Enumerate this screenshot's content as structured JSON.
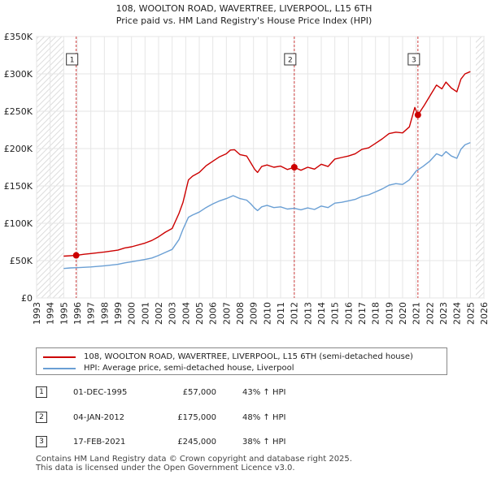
{
  "chart_data": {
    "type": "line",
    "title": "108, WOOLTON ROAD, WAVERTREE, LIVERPOOL, L15 6TH",
    "subtitle": "Price paid vs. HM Land Registry's House Price Index (HPI)",
    "xlim": [
      1993,
      2026
    ],
    "ylim": [
      0,
      350000
    ],
    "x_ticks": [
      "1993",
      "1994",
      "1995",
      "1996",
      "1997",
      "1998",
      "1999",
      "2000",
      "2001",
      "2002",
      "2003",
      "2004",
      "2005",
      "2006",
      "2007",
      "2008",
      "2009",
      "2010",
      "2011",
      "2012",
      "2013",
      "2014",
      "2015",
      "2016",
      "2017",
      "2018",
      "2019",
      "2020",
      "2021",
      "2022",
      "2023",
      "2024",
      "2025",
      "2026"
    ],
    "y_ticks": [
      {
        "value": 0,
        "label": "£0"
      },
      {
        "value": 50000,
        "label": "£50K"
      },
      {
        "value": 100000,
        "label": "£100K"
      },
      {
        "value": 150000,
        "label": "£150K"
      },
      {
        "value": 200000,
        "label": "£200K"
      },
      {
        "value": 250000,
        "label": "£250K"
      },
      {
        "value": 300000,
        "label": "£300K"
      },
      {
        "value": 350000,
        "label": "£350K"
      }
    ],
    "data_range": [
      1995.0,
      2025.4
    ],
    "grid": true,
    "series": [
      {
        "name": "108, WOOLTON ROAD, WAVERTREE, LIVERPOOL, L15 6TH (semi-detached house)",
        "color": "#cc0000",
        "points": [
          [
            1995.0,
            56000
          ],
          [
            1995.92,
            57000
          ],
          [
            1996.5,
            58500
          ],
          [
            1997,
            59500
          ],
          [
            1998,
            61500
          ],
          [
            1999,
            64000
          ],
          [
            1999.5,
            67000
          ],
          [
            2000,
            68500
          ],
          [
            2001,
            73500
          ],
          [
            2001.5,
            77000
          ],
          [
            2002,
            82000
          ],
          [
            2002.5,
            88000
          ],
          [
            2003,
            93000
          ],
          [
            2003.5,
            113000
          ],
          [
            2003.8,
            128000
          ],
          [
            2004.2,
            158000
          ],
          [
            2004.5,
            163000
          ],
          [
            2005,
            168000
          ],
          [
            2005.5,
            177000
          ],
          [
            2006,
            183000
          ],
          [
            2006.5,
            189000
          ],
          [
            2007,
            193000
          ],
          [
            2007.3,
            198000
          ],
          [
            2007.6,
            198500
          ],
          [
            2008,
            192000
          ],
          [
            2008.5,
            190000
          ],
          [
            2008.8,
            181000
          ],
          [
            2009.1,
            172000
          ],
          [
            2009.3,
            168000
          ],
          [
            2009.6,
            176000
          ],
          [
            2010,
            178000
          ],
          [
            2010.5,
            175000
          ],
          [
            2011,
            176500
          ],
          [
            2011.5,
            172000
          ],
          [
            2012.0,
            175000
          ],
          [
            2012.5,
            171000
          ],
          [
            2013,
            175000
          ],
          [
            2013.5,
            172500
          ],
          [
            2014,
            179000
          ],
          [
            2014.5,
            176000
          ],
          [
            2015,
            186000
          ],
          [
            2015.5,
            188000
          ],
          [
            2016,
            190000
          ],
          [
            2016.5,
            193000
          ],
          [
            2017,
            199000
          ],
          [
            2017.5,
            201000
          ],
          [
            2018,
            207000
          ],
          [
            2018.5,
            213000
          ],
          [
            2019,
            220000
          ],
          [
            2019.5,
            222000
          ],
          [
            2020,
            221000
          ],
          [
            2020.5,
            229000
          ],
          [
            2020.9,
            255000
          ],
          [
            2021.13,
            245000
          ],
          [
            2021.6,
            258000
          ],
          [
            2022,
            270000
          ],
          [
            2022.5,
            285000
          ],
          [
            2022.9,
            280000
          ],
          [
            2023.2,
            289000
          ],
          [
            2023.6,
            281000
          ],
          [
            2024,
            276000
          ],
          [
            2024.3,
            293000
          ],
          [
            2024.6,
            300000
          ],
          [
            2025.0,
            303000
          ]
        ]
      },
      {
        "name": "HPI: Average price, semi-detached house, Liverpool",
        "color": "#6a9fd4",
        "points": [
          [
            1995.0,
            39500
          ],
          [
            1995.5,
            40200
          ],
          [
            1996,
            40500
          ],
          [
            1997,
            41500
          ],
          [
            1998,
            43000
          ],
          [
            1999,
            45000
          ],
          [
            1999.5,
            47000
          ],
          [
            2000,
            48500
          ],
          [
            2001,
            51500
          ],
          [
            2001.5,
            53500
          ],
          [
            2002,
            57000
          ],
          [
            2002.5,
            61000
          ],
          [
            2003,
            65000
          ],
          [
            2003.5,
            78000
          ],
          [
            2003.8,
            92000
          ],
          [
            2004.2,
            108000
          ],
          [
            2004.5,
            111000
          ],
          [
            2005,
            115000
          ],
          [
            2005.5,
            121000
          ],
          [
            2006,
            126000
          ],
          [
            2006.5,
            130000
          ],
          [
            2007,
            133000
          ],
          [
            2007.5,
            137000
          ],
          [
            2008,
            133000
          ],
          [
            2008.5,
            131000
          ],
          [
            2008.8,
            126000
          ],
          [
            2009.1,
            120000
          ],
          [
            2009.3,
            117000
          ],
          [
            2009.6,
            122000
          ],
          [
            2010,
            124000
          ],
          [
            2010.5,
            121000
          ],
          [
            2011,
            122000
          ],
          [
            2011.5,
            119000
          ],
          [
            2012,
            120000
          ],
          [
            2012.5,
            118000
          ],
          [
            2013,
            120500
          ],
          [
            2013.5,
            118500
          ],
          [
            2014,
            123000
          ],
          [
            2014.5,
            121000
          ],
          [
            2015,
            127000
          ],
          [
            2015.5,
            128000
          ],
          [
            2016,
            130000
          ],
          [
            2016.5,
            132000
          ],
          [
            2017,
            136000
          ],
          [
            2017.5,
            138000
          ],
          [
            2018,
            142000
          ],
          [
            2018.5,
            146000
          ],
          [
            2019,
            151000
          ],
          [
            2019.5,
            153000
          ],
          [
            2020,
            152000
          ],
          [
            2020.5,
            158000
          ],
          [
            2021,
            170000
          ],
          [
            2021.5,
            176000
          ],
          [
            2022,
            183000
          ],
          [
            2022.5,
            193000
          ],
          [
            2022.9,
            190000
          ],
          [
            2023.2,
            196000
          ],
          [
            2023.6,
            190000
          ],
          [
            2024,
            187000
          ],
          [
            2024.3,
            199000
          ],
          [
            2024.6,
            205000
          ],
          [
            2025.0,
            208000
          ]
        ]
      }
    ],
    "sales": [
      {
        "num": "1",
        "x": 1995.92,
        "y": 57000,
        "date": "01-DEC-1995",
        "price": "£57,000",
        "hpi": "43% ↑ HPI"
      },
      {
        "num": "2",
        "x": 2012.01,
        "y": 175000,
        "date": "04-JAN-2012",
        "price": "£175,000",
        "hpi": "48% ↑ HPI"
      },
      {
        "num": "3",
        "x": 2021.13,
        "y": 245000,
        "date": "17-FEB-2021",
        "price": "£245,000",
        "hpi": "38% ↑ HPI"
      }
    ]
  },
  "legend": {
    "property_label": "108, WOOLTON ROAD, WAVERTREE, LIVERPOOL, L15 6TH (semi-detached house)",
    "hpi_label": "HPI: Average price, semi-detached house, Liverpool",
    "property_color": "#cc0000",
    "hpi_color": "#6a9fd4"
  },
  "footer": {
    "line1": "Contains HM Land Registry data © Crown copyright and database right 2025.",
    "line2": "This data is licensed under the Open Government Licence v3.0."
  }
}
